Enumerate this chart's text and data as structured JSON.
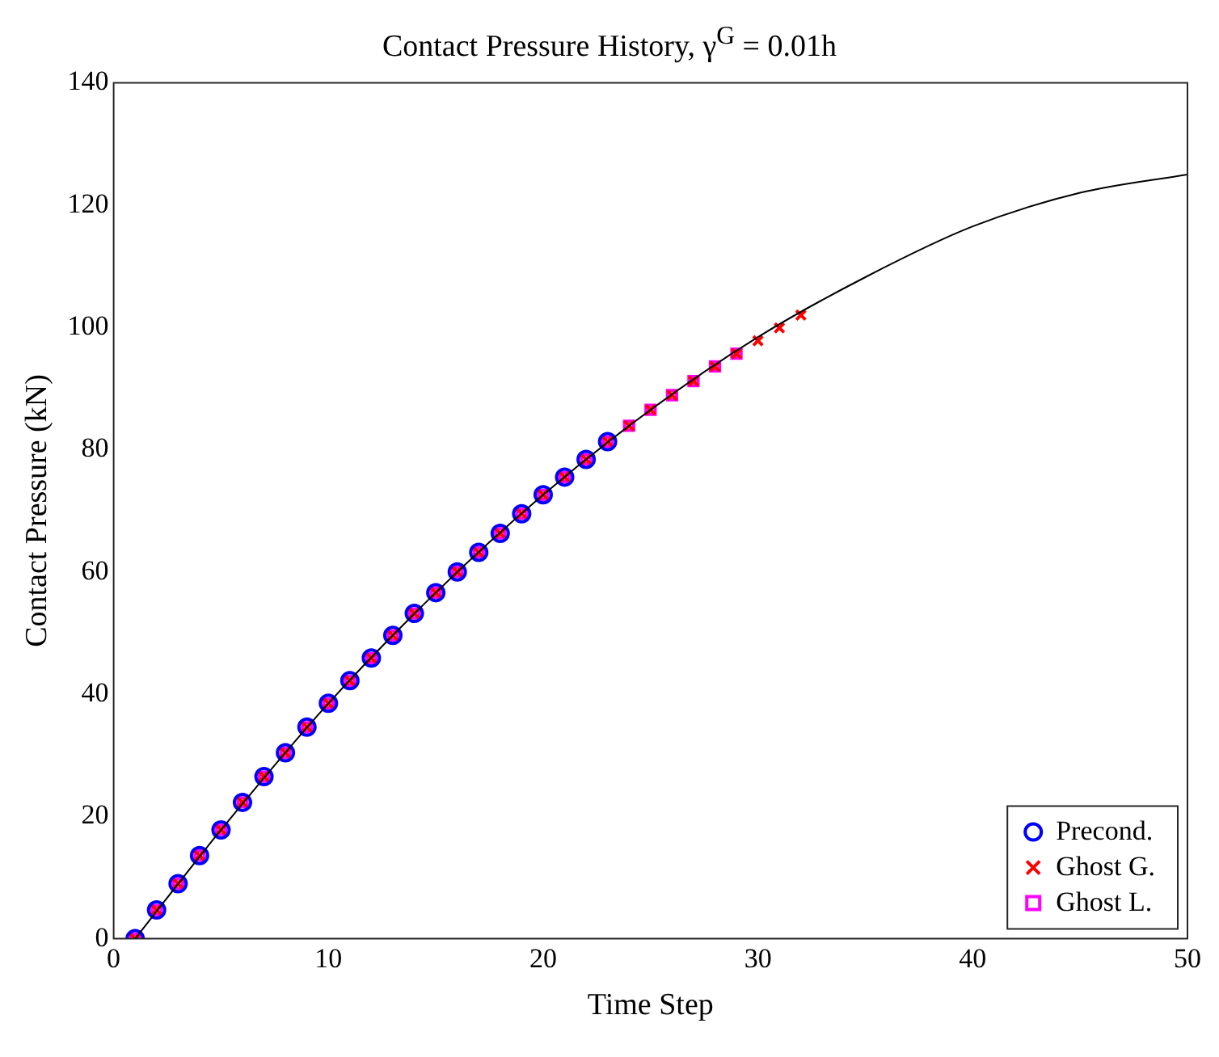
{
  "chart_data": {
    "type": "scatter",
    "title": "Contact Pressure History, γ$^{G}$ = 0.01h",
    "xlabel": "Time Step",
    "ylabel": "Contact Pressure (kN)",
    "xlim": [
      0,
      50
    ],
    "xticks": [
      0,
      10,
      20,
      30,
      40,
      50
    ],
    "ylim": [
      0,
      140
    ],
    "yticks": [
      0,
      20,
      40,
      60,
      80,
      100,
      120,
      140
    ],
    "grid": false,
    "legend": "bottom right",
    "series": [
      {
        "type": "line",
        "color": "#000000",
        "marker": "none",
        "line_style": "solid",
        "x": [
          1,
          5,
          10,
          15,
          20,
          25,
          30,
          35,
          40,
          45,
          50
        ],
        "values": [
          0,
          17.8,
          38.5,
          56.6,
          72.6,
          86.5,
          98.4,
          108.2,
          116.5,
          122,
          125
        ]
      },
      {
        "name": "Precond.",
        "color": "#0000ff",
        "marker": "circle",
        "x": [
          1,
          2,
          3,
          4,
          5,
          6,
          7,
          8,
          9,
          10,
          11,
          12,
          13,
          14,
          15,
          16,
          17,
          18,
          19,
          20,
          21,
          22,
          23
        ],
        "values": [
          0,
          4.7,
          9,
          13.6,
          17.8,
          22.3,
          26.5,
          30.4,
          34.6,
          38.5,
          42.2,
          45.9,
          49.6,
          53.2,
          56.6,
          60,
          63.2,
          66.3,
          69.5,
          72.6,
          75.5,
          78.4,
          81.3
        ]
      },
      {
        "name": "Ghost G.",
        "color": "#ff0000",
        "marker": "cross",
        "x": [
          1,
          2,
          3,
          4,
          5,
          6,
          7,
          8,
          9,
          10,
          11,
          12,
          13,
          14,
          15,
          16,
          17,
          18,
          19,
          20,
          21,
          22,
          23,
          24,
          25,
          26,
          27,
          28,
          29,
          30,
          31,
          32
        ],
        "values": [
          0,
          4.7,
          9,
          13.6,
          17.8,
          22.3,
          26.5,
          30.4,
          34.6,
          38.5,
          42.2,
          45.9,
          49.6,
          53.2,
          56.6,
          60,
          63.2,
          66.3,
          69.5,
          72.6,
          75.5,
          78.4,
          81.3,
          83.9,
          86.5,
          88.9,
          91.2,
          93.6,
          95.7,
          97.8,
          99.9,
          102
        ]
      },
      {
        "name": "Ghost L.",
        "color": "#ff00ff",
        "marker": "square",
        "x": [
          1,
          2,
          3,
          4,
          5,
          6,
          7,
          8,
          9,
          10,
          11,
          12,
          13,
          14,
          15,
          16,
          17,
          18,
          19,
          20,
          21,
          22,
          23,
          24,
          25,
          26,
          27,
          28,
          29
        ],
        "values": [
          0,
          4.7,
          9,
          13.6,
          17.8,
          22.3,
          26.5,
          30.4,
          34.6,
          38.5,
          42.2,
          45.9,
          49.6,
          53.2,
          56.6,
          60,
          63.2,
          66.3,
          69.5,
          72.6,
          75.5,
          78.4,
          81.3,
          83.9,
          86.5,
          88.9,
          91.2,
          93.6,
          95.7
        ]
      }
    ]
  }
}
